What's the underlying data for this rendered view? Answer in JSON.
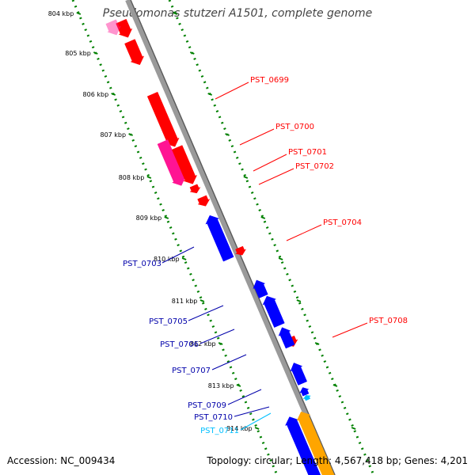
{
  "title": "Pseudomonas stutzeri A1501, complete genome",
  "accession_text": "Accession: NC_009434",
  "topology_text": "Topology: circular; Length: 4,567,418 bp; Genes: 4,201",
  "colors": {
    "backbone": "#808080",
    "ruler_dots": "#008000",
    "forward_gene": "#ff0000",
    "forward_gene_pink": "#ff1493",
    "reverse_gene": "#0000ff",
    "reverse_gene_light": "#00bfff",
    "orange_gene": "#ffa500"
  },
  "ruler_ticks": [
    "804 kbp",
    "805 kbp",
    "806 kbp",
    "807 kbp",
    "808 kbp",
    "809 kbp",
    "810 kbp",
    "811 kbp",
    "812 kbp",
    "813 kbp",
    "814 kbp"
  ],
  "gene_labels": [
    {
      "name": "PST_0699",
      "color": "#ff0000"
    },
    {
      "name": "PST_0700",
      "color": "#ff0000"
    },
    {
      "name": "PST_0701",
      "color": "#ff0000"
    },
    {
      "name": "PST_0702",
      "color": "#ff0000"
    },
    {
      "name": "PST_0704",
      "color": "#ff0000"
    },
    {
      "name": "PST_0708",
      "color": "#ff0000"
    },
    {
      "name": "PST_0703",
      "color": "#0000aa"
    },
    {
      "name": "PST_0705",
      "color": "#0000aa"
    },
    {
      "name": "PST_0706",
      "color": "#0000aa"
    },
    {
      "name": "PST_0707",
      "color": "#0000aa"
    },
    {
      "name": "PST_0709",
      "color": "#0000aa"
    },
    {
      "name": "PST_0710",
      "color": "#0000aa"
    },
    {
      "name": "PST_0711",
      "color": "#00bfff"
    }
  ]
}
